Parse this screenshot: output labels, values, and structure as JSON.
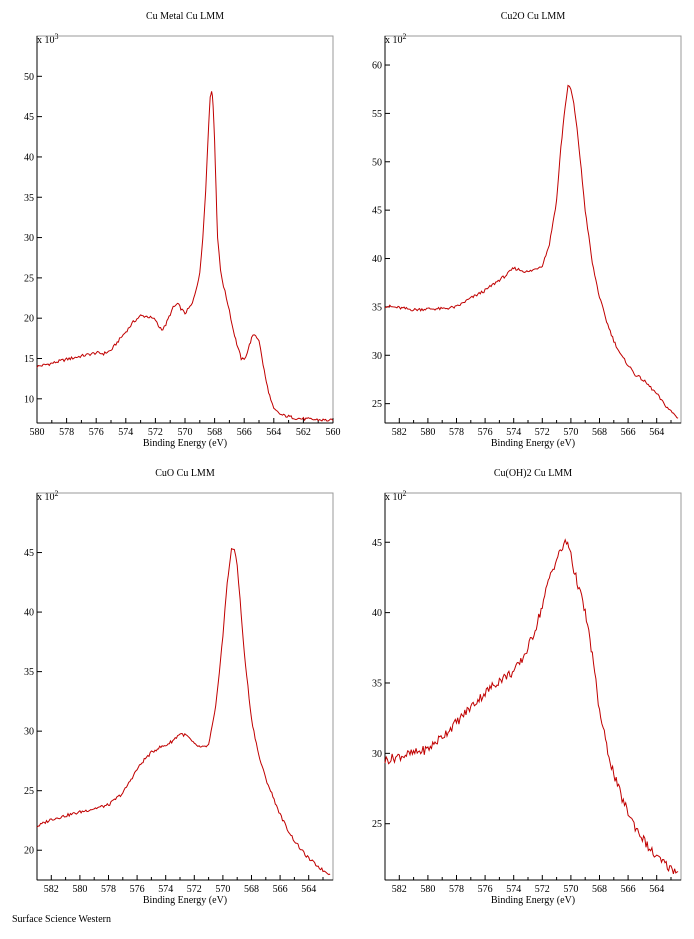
{
  "footer": "Surface Science Western",
  "colors": {
    "line": "#c00000",
    "axis": "#000000",
    "grid": "#999999"
  },
  "chart_data": [
    {
      "type": "line",
      "title": "Cu Metal Cu LMM",
      "xlabel": "Binding Energy (eV)",
      "ylabel": "",
      "multiplier": "x 10",
      "exponent": "3",
      "xlim": [
        580,
        560
      ],
      "ylim": [
        7,
        55
      ],
      "xticks": [
        580,
        578,
        576,
        574,
        572,
        570,
        568,
        566,
        564,
        562,
        560
      ],
      "yticks": [
        10,
        15,
        20,
        25,
        30,
        35,
        40,
        45,
        50
      ],
      "series": [
        {
          "name": "Cu Metal",
          "x": [
            580,
            579,
            578,
            577,
            576,
            575.5,
            575,
            574.5,
            574,
            573.5,
            573,
            572.5,
            572,
            571.8,
            571.5,
            571.3,
            571,
            570.8,
            570.5,
            570.2,
            570,
            569.5,
            569,
            568.8,
            568.6,
            568.4,
            568.3,
            568.2,
            568.1,
            568,
            567.9,
            567.8,
            567.6,
            567.4,
            567.2,
            567,
            566.8,
            566.5,
            566.2,
            566,
            565.8,
            565.5,
            565.3,
            565,
            564.8,
            564.5,
            564.2,
            564,
            563.5,
            563,
            562.5,
            562,
            561,
            560
          ],
          "y": [
            14.0,
            14.4,
            14.9,
            15.3,
            15.7,
            15.6,
            16.0,
            17.2,
            18.3,
            19.5,
            20.3,
            20.2,
            19.8,
            19.0,
            18.6,
            19.2,
            20.5,
            21.3,
            21.8,
            21.0,
            20.6,
            21.8,
            25.5,
            30.0,
            36.0,
            44.0,
            47.5,
            48.3,
            46.5,
            42.0,
            36.0,
            30.0,
            26.0,
            24.0,
            22.5,
            21.0,
            19.0,
            16.8,
            15.0,
            14.8,
            15.8,
            17.5,
            18.0,
            17.3,
            15.0,
            12.0,
            9.8,
            8.7,
            8.0,
            7.8,
            7.6,
            7.5,
            7.4,
            7.3
          ]
        }
      ]
    },
    {
      "type": "line",
      "title": "Cu2O Cu LMM",
      "xlabel": "Binding Energy (eV)",
      "ylabel": "",
      "multiplier": "x 10",
      "exponent": "2",
      "xlim": [
        583,
        562.3
      ],
      "ylim": [
        23,
        63
      ],
      "xticks": [
        582,
        580,
        578,
        576,
        574,
        572,
        570,
        568,
        566,
        564
      ],
      "yticks": [
        25,
        30,
        35,
        40,
        45,
        50,
        55,
        60
      ],
      "series": [
        {
          "name": "Cu2O",
          "x": [
            583,
            582,
            581,
            580,
            579,
            578,
            577,
            576,
            575,
            574.5,
            574,
            573.5,
            573,
            572.5,
            572,
            571.5,
            571,
            570.7,
            570.4,
            570.2,
            570,
            569.8,
            569.5,
            569.2,
            569,
            568.5,
            568,
            567.5,
            567,
            566.5,
            566,
            565.5,
            565,
            564.5,
            564,
            563.5,
            563,
            562.5
          ],
          "y": [
            35.1,
            34.9,
            34.7,
            34.8,
            34.8,
            35.0,
            35.9,
            36.7,
            37.8,
            38.3,
            39.0,
            38.8,
            38.6,
            38.9,
            39.3,
            41.5,
            46.0,
            51.5,
            55.8,
            57.8,
            57.5,
            56.0,
            52.5,
            48.0,
            45.0,
            39.5,
            36.0,
            33.5,
            31.5,
            30.0,
            29.0,
            28.0,
            27.5,
            26.8,
            26.0,
            25.0,
            24.2,
            23.5
          ]
        }
      ]
    },
    {
      "type": "line",
      "title": "CuO Cu LMM",
      "xlabel": "Binding Energy (eV)",
      "ylabel": "",
      "multiplier": "x 10",
      "exponent": "2",
      "xlim": [
        583,
        562.3
      ],
      "ylim": [
        17.5,
        50
      ],
      "xticks": [
        582,
        580,
        578,
        576,
        574,
        572,
        570,
        568,
        566,
        564
      ],
      "yticks": [
        20,
        25,
        30,
        35,
        40,
        45
      ],
      "series": [
        {
          "name": "CuO",
          "x": [
            583,
            582,
            581,
            580,
            579,
            578,
            577,
            576.5,
            576,
            575.5,
            575,
            574.5,
            574,
            573.5,
            573,
            572.5,
            572,
            571.5,
            571,
            570.5,
            570,
            569.7,
            569.4,
            569.2,
            569,
            568.8,
            568.5,
            568,
            567.5,
            567,
            566.5,
            566,
            565.5,
            565,
            564.5,
            564,
            563.5,
            563,
            562.5
          ],
          "y": [
            22.0,
            22.6,
            22.9,
            23.2,
            23.5,
            23.8,
            24.8,
            25.8,
            26.8,
            27.6,
            28.2,
            28.6,
            28.8,
            29.2,
            29.8,
            29.6,
            28.9,
            28.6,
            28.8,
            32.0,
            38.0,
            42.5,
            45.2,
            45.3,
            44.0,
            41.0,
            36.5,
            31.0,
            28.0,
            26.0,
            24.5,
            23.0,
            21.8,
            20.8,
            20.0,
            19.3,
            18.8,
            18.3,
            18.0
          ]
        }
      ]
    },
    {
      "type": "line",
      "title": "Cu(OH)2 Cu LMM",
      "xlabel": "Binding Energy (eV)",
      "ylabel": "",
      "multiplier": "x 10",
      "exponent": "2",
      "xlim": [
        583,
        562.3
      ],
      "ylim": [
        21,
        48.5
      ],
      "xticks": [
        582,
        580,
        578,
        576,
        574,
        572,
        570,
        568,
        566,
        564
      ],
      "yticks": [
        25,
        30,
        35,
        40,
        45
      ],
      "series": [
        {
          "name": "Cu(OH)2",
          "x": [
            583,
            582,
            581,
            580,
            579,
            578,
            577,
            576,
            575,
            574,
            573.5,
            573,
            572.5,
            572,
            571.5,
            571,
            570.5,
            570.3,
            570,
            569.8,
            569.5,
            569,
            568.5,
            568,
            567.5,
            567,
            566.5,
            566,
            565.5,
            565,
            564.5,
            564,
            563.5,
            563,
            562.5
          ],
          "y": [
            29.5,
            29.8,
            30.0,
            30.3,
            31.2,
            32.2,
            33.3,
            34.3,
            35.2,
            35.8,
            36.5,
            37.5,
            38.8,
            40.5,
            42.5,
            43.8,
            44.8,
            45.0,
            44.3,
            43.0,
            42.0,
            40.0,
            37.0,
            33.0,
            30.5,
            28.5,
            27.0,
            25.8,
            24.8,
            24.0,
            23.2,
            22.6,
            22.2,
            21.8,
            21.6
          ]
        }
      ]
    }
  ]
}
